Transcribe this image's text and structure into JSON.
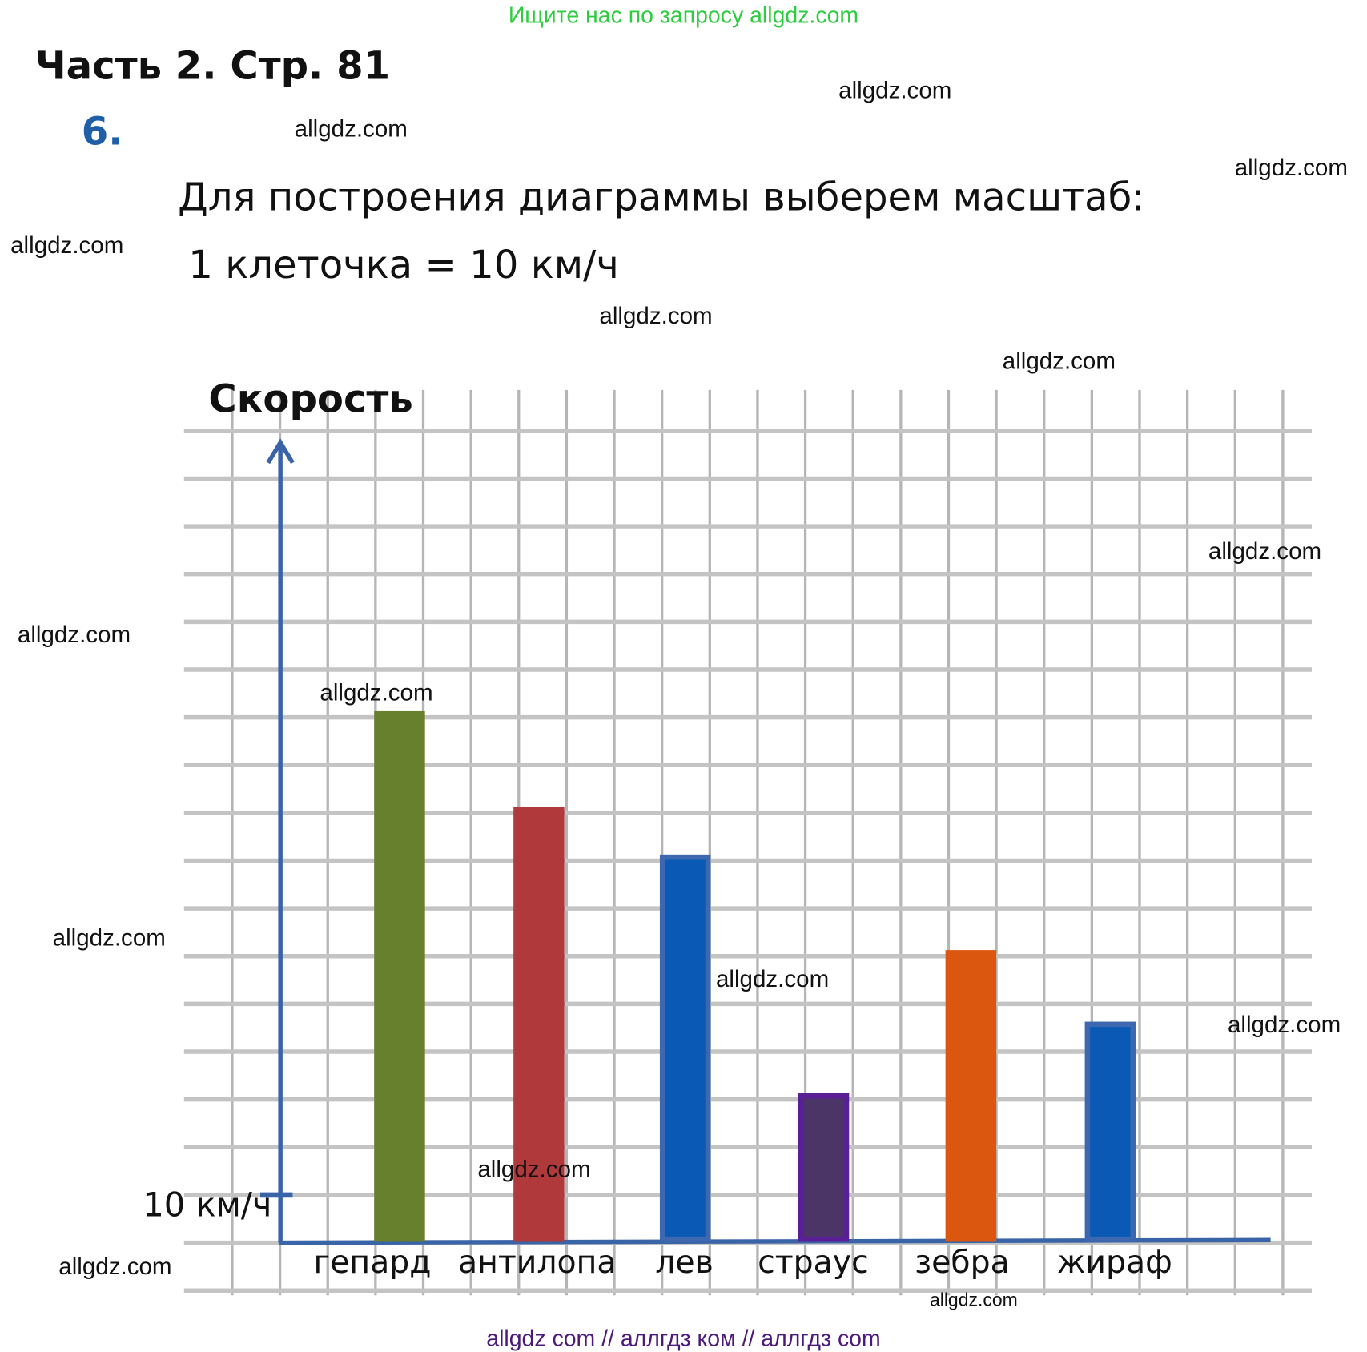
{
  "header": {
    "search_hint": "Ищите нас по запросу allgdz.com",
    "part_title": "Часть 2. Стр. 81",
    "task_number": "6.",
    "line1": "Для построения диаграммы выберем масштаб:",
    "line2": "1 клеточка = 10 км/ч",
    "footer": "allgdz com  //  аллгдз ком  //  аллгдз com"
  },
  "watermark": "allgdz.com",
  "colors": {
    "axis": "#3a64a8",
    "grid": "#bdbdbd",
    "top_text": "#2ecc40",
    "number": "#1f5fa8"
  },
  "chart_data": {
    "type": "bar",
    "ylabel": "Скорость",
    "unit_tick_label": "10 км/ч",
    "unit_tick_value": 10,
    "categories": [
      "гепард",
      "антилопа",
      "лев",
      "страус",
      "зебра",
      "жираф"
    ],
    "values": [
      110,
      90,
      80,
      30,
      60,
      45
    ],
    "bar_colors": [
      "#66802e",
      "#b0393b",
      "#0a5ab5",
      "#4b3566",
      "#db560f",
      "#0a5ab5"
    ],
    "bar_borders": [
      "#66802e",
      "#b0393b",
      "#3d68b0",
      "#5a1e96",
      "#db560f",
      "#3d68b0"
    ],
    "ylim": [
      0,
      170
    ],
    "grid": true
  }
}
